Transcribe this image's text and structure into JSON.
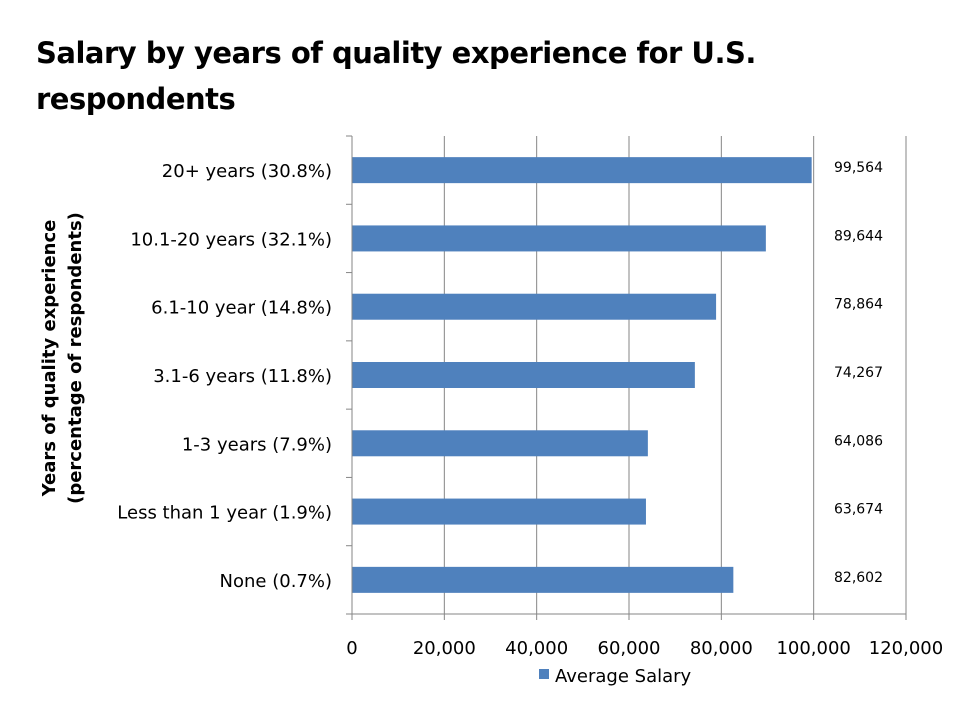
{
  "slide": {
    "title": "Salary by years of quality experience for U.S. respondents"
  },
  "chart_data": {
    "type": "bar",
    "orientation": "horizontal",
    "title": "Salary by years of quality experience for U.S. respondents",
    "categories": [
      "20+ years (30.8%)",
      "10.1-20 years (32.1%)",
      "6.1-10 year (14.8%)",
      "3.1-6 years (11.8%)",
      "1-3 years (7.9%)",
      "Less than 1 year (1.9%)",
      "None (0.7%)"
    ],
    "series": [
      {
        "name": "Average Salary",
        "values": [
          99564,
          89644,
          78864,
          74267,
          64086,
          63674,
          82602
        ],
        "labels": [
          "99,564",
          "89,644",
          "78,864",
          "74,267",
          "64,086",
          "63,674",
          "82,602"
        ]
      }
    ],
    "ylabel_lines": [
      "Years of quality experience",
      "(percentage of respondents)"
    ],
    "xlim": [
      0,
      120000
    ],
    "xticks": [
      0,
      20000,
      40000,
      60000,
      80000,
      100000,
      120000
    ],
    "xtick_labels": [
      "0",
      "20,000",
      "40,000",
      "60,000",
      "80,000",
      "100,000",
      "120,000"
    ],
    "grid": "vertical",
    "legend": "bottom",
    "colors": {
      "bar": "#4F81BD",
      "grid": "#868686",
      "axis": "#868686"
    }
  }
}
